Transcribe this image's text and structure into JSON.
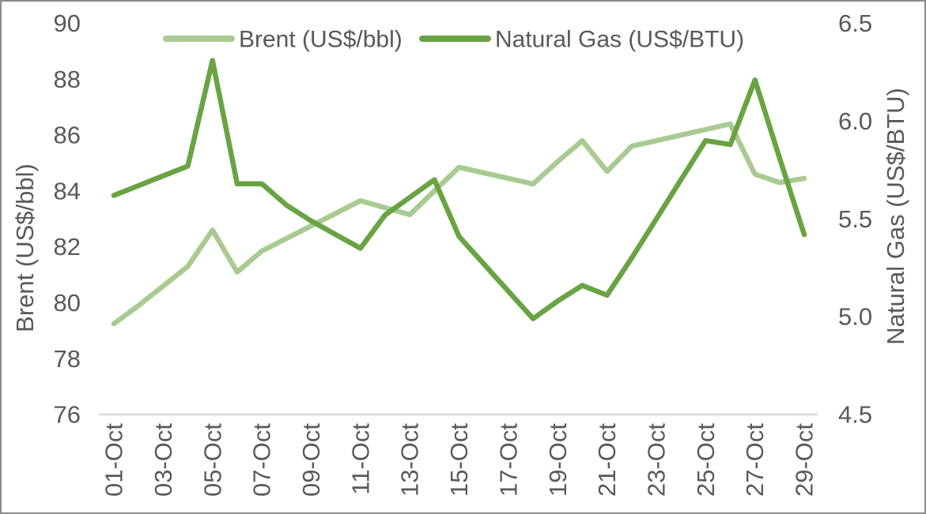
{
  "chart_data": {
    "type": "line",
    "title": "",
    "x": [
      "01-Oct",
      "02-Oct",
      "03-Oct",
      "04-Oct",
      "05-Oct",
      "06-Oct",
      "07-Oct",
      "08-Oct",
      "09-Oct",
      "10-Oct",
      "11-Oct",
      "12-Oct",
      "13-Oct",
      "14-Oct",
      "15-Oct",
      "16-Oct",
      "17-Oct",
      "18-Oct",
      "19-Oct",
      "20-Oct",
      "21-Oct",
      "22-Oct",
      "23-Oct",
      "24-Oct",
      "25-Oct",
      "26-Oct",
      "27-Oct",
      "28-Oct",
      "29-Oct"
    ],
    "x_tick_every": 2,
    "series": [
      {
        "name": "Brent (US$/bbl)",
        "axis": "left",
        "color": "#a9cb92",
        "values": [
          79.25,
          79.9,
          80.6,
          81.3,
          82.6,
          81.1,
          81.85,
          82.3,
          82.75,
          83.2,
          83.65,
          83.4,
          83.15,
          84.0,
          84.85,
          84.65,
          84.45,
          84.25,
          85.05,
          85.8,
          84.7,
          85.6,
          85.8,
          86.0,
          86.2,
          86.4,
          84.6,
          84.3,
          84.45
        ]
      },
      {
        "name": "Natural Gas (US$/BTU)",
        "axis": "right",
        "color": "#6aa342",
        "values": [
          5.62,
          5.67,
          5.72,
          5.77,
          6.31,
          5.68,
          5.68,
          5.57,
          5.49,
          5.42,
          5.35,
          5.52,
          5.61,
          5.7,
          5.41,
          5.27,
          5.13,
          4.99,
          5.08,
          5.16,
          5.11,
          5.3,
          5.5,
          5.7,
          5.9,
          5.88,
          6.21,
          5.81,
          5.42
        ]
      }
    ],
    "y_left": {
      "label": "Brent (US$/bbl)",
      "min": 76,
      "max": 90,
      "ticks": [
        "90",
        "88",
        "86",
        "84",
        "82",
        "80",
        "78",
        "76"
      ]
    },
    "y_right": {
      "label": "Natural Gas (US$/BTU)",
      "min": 4.5,
      "max": 6.5,
      "ticks": [
        "6.5",
        "6.0",
        "5.5",
        "5.0",
        "4.5"
      ]
    },
    "legend": {
      "position": "top-center",
      "items": [
        "Brent (US$/bbl)",
        "Natural Gas (US$/BTU)"
      ]
    },
    "grid": "off",
    "colors": {
      "text": "#595959",
      "axis_line": "#d9d9d9",
      "frame_border": "#8a8a8a",
      "background": "#ffffff"
    }
  }
}
